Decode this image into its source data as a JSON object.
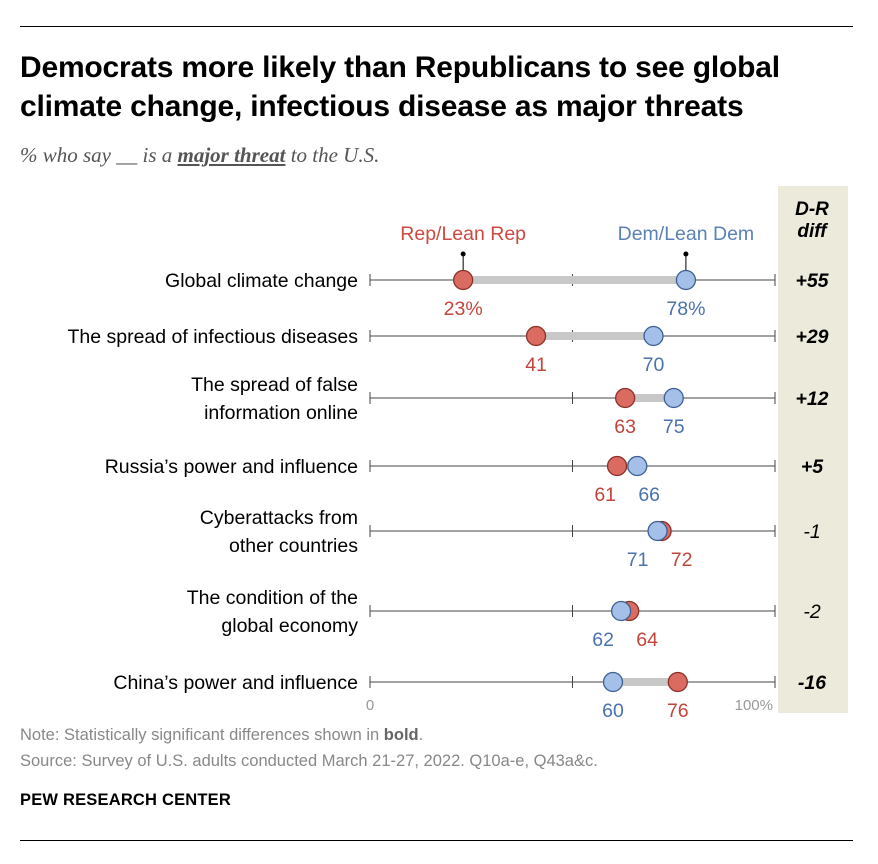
{
  "header": {
    "title": "Democrats more likely than Republicans to see global climate change, infectious disease as major threats",
    "subtitle_prefix": "% who say __ is a ",
    "subtitle_emphasis": "major threat",
    "subtitle_suffix": " to the U.S."
  },
  "chart_data": {
    "type": "dot-plot",
    "categories": [
      [
        "Global climate change"
      ],
      [
        "The spread of infectious diseases"
      ],
      [
        "The spread of false",
        "information online"
      ],
      [
        "Russia’s power and influence"
      ],
      [
        "Cyberattacks from",
        "other countries"
      ],
      [
        "The condition of the",
        "global economy"
      ],
      [
        "China’s power and influence"
      ]
    ],
    "series": [
      {
        "name": "Rep/Lean Rep",
        "color": "#cc4a3f",
        "values": [
          23,
          41,
          63,
          61,
          72,
          64,
          76
        ],
        "labels": [
          "23%",
          "41",
          "63",
          "61",
          "72",
          "64",
          "76"
        ]
      },
      {
        "name": "Dem/Lean Dem",
        "color": "#5a81b8",
        "values": [
          78,
          70,
          75,
          66,
          71,
          62,
          60
        ],
        "labels": [
          "78%",
          "70",
          "75",
          "66",
          "71",
          "62",
          "60"
        ]
      }
    ],
    "diff_header": [
      "D-R",
      "diff"
    ],
    "diff": [
      "+55",
      "+29",
      "+12",
      "+5",
      "-1",
      "-2",
      "-16"
    ],
    "diff_significant": [
      true,
      true,
      true,
      true,
      false,
      false,
      true
    ],
    "xlim": [
      0,
      100
    ],
    "axis_labels": {
      "min": "0",
      "max": "100%"
    }
  },
  "footer": {
    "note_prefix": "Note: Statistically significant differences shown in ",
    "note_bold": "bold",
    "note_suffix": ".",
    "source": "Source: Survey of U.S. adults conducted March 21-27, 2022. Q10a-e, Q43a&c.",
    "brand": "PEW RESEARCH CENTER"
  }
}
